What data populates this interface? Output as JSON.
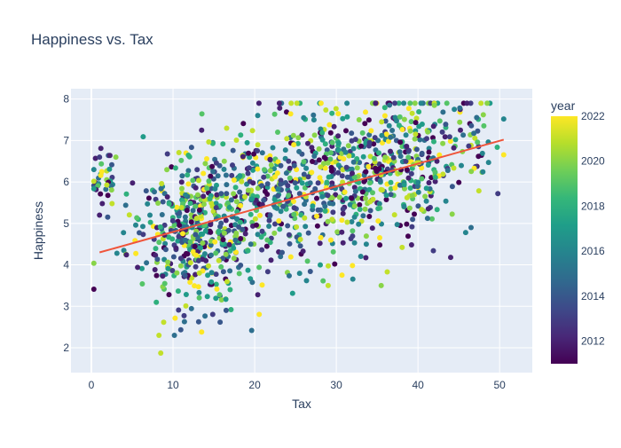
{
  "chart_data": {
    "type": "scatter",
    "title": "Happiness vs. Tax",
    "xlabel": "Tax",
    "ylabel": "Happiness",
    "xlim": [
      -2.5,
      54
    ],
    "ylim": [
      1.4,
      8.25
    ],
    "x_ticks": [
      0,
      10,
      20,
      30,
      40,
      50
    ],
    "y_ticks": [
      2,
      3,
      4,
      5,
      6,
      7,
      8
    ],
    "grid": true,
    "background_color": "#e5ecf6",
    "colorscale": "Viridis",
    "colorbar": {
      "title": "year",
      "range": [
        2011,
        2022
      ],
      "ticks": [
        2012,
        2014,
        2016,
        2018,
        2020,
        2022
      ]
    },
    "trendline": {
      "x": [
        1,
        50.5
      ],
      "y": [
        4.3,
        7.02
      ],
      "color": "#EF553B"
    },
    "point_count_estimate": 1500,
    "representative_points": [
      {
        "x": 0.5,
        "y": 6.57,
        "year": 2012
      },
      {
        "x": 1.0,
        "y": 6.6,
        "year": 2013
      },
      {
        "x": 1.0,
        "y": 5.2,
        "year": 2012
      },
      {
        "x": 2.0,
        "y": 5.15,
        "year": 2014
      },
      {
        "x": 3.0,
        "y": 6.6,
        "year": 2020
      },
      {
        "x": 8.5,
        "y": 1.87,
        "year": 2021
      },
      {
        "x": 13.5,
        "y": 2.38,
        "year": 2022
      },
      {
        "x": 13.5,
        "y": 7.25,
        "year": 2012
      },
      {
        "x": 16.5,
        "y": 2.9,
        "year": 2014
      },
      {
        "x": 26.0,
        "y": 7.55,
        "year": 2016
      },
      {
        "x": 29.0,
        "y": 3.5,
        "year": 2021
      },
      {
        "x": 35.5,
        "y": 3.5,
        "year": 2020
      },
      {
        "x": 42.0,
        "y": 7.85,
        "year": 2020
      },
      {
        "x": 44.0,
        "y": 4.18,
        "year": 2012
      },
      {
        "x": 46.0,
        "y": 7.9,
        "year": 2012
      },
      {
        "x": 46.5,
        "y": 4.9,
        "year": 2015
      },
      {
        "x": 48.0,
        "y": 7.62,
        "year": 2020
      },
      {
        "x": 50.5,
        "y": 7.52,
        "year": 2016
      }
    ],
    "clusters": [
      {
        "x_mean": 1.5,
        "x_sd": 0.9,
        "y_mean": 6.1,
        "y_sd": 0.35,
        "n": 30
      },
      {
        "x_mean": 12.5,
        "x_sd": 4.0,
        "y_mean": 4.8,
        "y_sd": 0.9,
        "n": 480
      },
      {
        "x_mean": 21.0,
        "x_sd": 4.0,
        "y_mean": 5.7,
        "y_sd": 0.75,
        "n": 200
      },
      {
        "x_mean": 31.0,
        "x_sd": 5.0,
        "y_mean": 6.1,
        "y_sd": 0.95,
        "n": 420
      },
      {
        "x_mean": 40.0,
        "x_sd": 3.5,
        "y_mean": 6.6,
        "y_sd": 0.85,
        "n": 220
      },
      {
        "x_mean": 47.0,
        "x_sd": 1.5,
        "y_mean": 6.9,
        "y_sd": 0.5,
        "n": 20
      }
    ]
  }
}
